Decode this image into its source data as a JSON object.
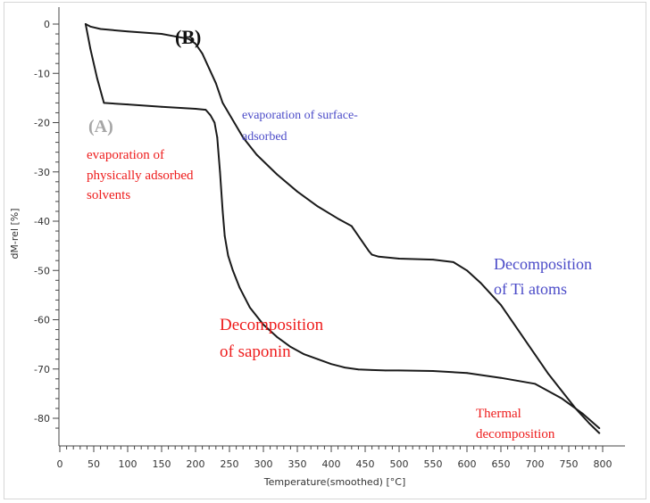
{
  "chart_data": {
    "type": "line",
    "title": "",
    "xlabel": "Temperature(smoothed) [°C]",
    "ylabel": "dM-rel [%]",
    "xlim": [
      0,
      800
    ],
    "ylim": [
      -83,
      0
    ],
    "x_ticks": [
      0,
      50,
      100,
      150,
      200,
      250,
      300,
      350,
      400,
      450,
      500,
      550,
      600,
      650,
      700,
      750,
      800
    ],
    "y_ticks": [
      0,
      -10,
      -20,
      -30,
      -40,
      -50,
      -60,
      -70,
      -80
    ],
    "grid": false,
    "line_color": "#1a1a1a",
    "series": [
      {
        "label": "(A)",
        "x": [
          38,
          45,
          55,
          65,
          100,
          150,
          200,
          215,
          222,
          228,
          232,
          236,
          240,
          243,
          248,
          255,
          265,
          280,
          300,
          320,
          340,
          360,
          380,
          400,
          420,
          440,
          460,
          480,
          500,
          550,
          600,
          650,
          700,
          740,
          770,
          795
        ],
        "y": [
          0,
          -5,
          -11,
          -16,
          -16.3,
          -16.8,
          -17.2,
          -17.4,
          -18.5,
          -20,
          -23,
          -30,
          -38,
          -43,
          -47,
          -50,
          -53.5,
          -57.5,
          -61,
          -63.5,
          -65.5,
          -67,
          -68,
          -69,
          -69.7,
          -70.1,
          -70.2,
          -70.3,
          -70.3,
          -70.4,
          -70.8,
          -71.8,
          -73,
          -76,
          -79,
          -82
        ]
      },
      {
        "label": "(B)",
        "x": [
          38,
          45,
          60,
          100,
          150,
          170,
          190,
          200,
          210,
          220,
          230,
          240,
          255,
          270,
          290,
          320,
          350,
          380,
          410,
          430,
          445,
          455,
          460,
          470,
          500,
          550,
          580,
          600,
          620,
          650,
          680,
          700,
          720,
          740,
          760,
          780,
          795
        ],
        "y": [
          0,
          -0.5,
          -1,
          -1.5,
          -2,
          -2.5,
          -3,
          -4,
          -6,
          -9,
          -12,
          -16,
          -19.5,
          -23,
          -26.5,
          -30.5,
          -34,
          -37,
          -39.5,
          -41,
          -44,
          -46,
          -46.8,
          -47.2,
          -47.6,
          -47.8,
          -48.3,
          -50,
          -52.5,
          -57,
          -63,
          -67,
          -71,
          -74.5,
          -78,
          -81,
          -83
        ]
      }
    ],
    "annotations": [
      {
        "text": "(B)",
        "color": "#111111"
      },
      {
        "text": "(A)",
        "color": "#a6a6a6"
      },
      {
        "text": "evaporation of surface-",
        "color": "#4b4bc8"
      },
      {
        "text": "adsorbed",
        "color": "#4b4bc8"
      },
      {
        "text": "evaporation of",
        "color": "#ee1c1c"
      },
      {
        "text": "physically adsorbed",
        "color": "#ee1c1c"
      },
      {
        "text": "solvents",
        "color": "#ee1c1c"
      },
      {
        "text": "Decomposition",
        "color": "#4b4bc8"
      },
      {
        "text": "of Ti atoms",
        "color": "#4b4bc8"
      },
      {
        "text": "Decomposition",
        "color": "#ee1c1c"
      },
      {
        "text": "of saponin",
        "color": "#ee1c1c"
      },
      {
        "text": "Thermal",
        "color": "#ee1c1c"
      },
      {
        "text": "decomposition",
        "color": "#ee1c1c"
      }
    ]
  }
}
